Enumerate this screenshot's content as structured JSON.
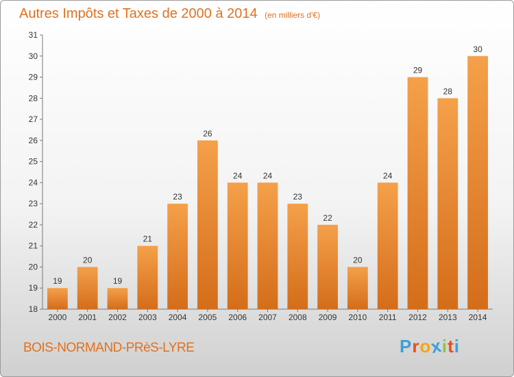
{
  "header": {
    "title": "Autres Impôts et Taxes de 2000 à 2014",
    "unit": "(en milliers d'€)"
  },
  "footer": {
    "commune": "BOIS-NORMAND-PRèS-LYRE",
    "logo": [
      "P",
      "r",
      "o",
      "x",
      "i",
      "t",
      "i"
    ]
  },
  "colors": {
    "bar_light": "#f5a04a",
    "bar_dark": "#d46d1a",
    "title": "#e0711f",
    "logo": [
      "#3aa0d8",
      "#e94e1b",
      "#f3a712",
      "#3aa0d8",
      "#8cc63f",
      "#e94e1b",
      "#3aa0d8"
    ]
  },
  "chart_data": {
    "type": "bar",
    "categories": [
      "2000",
      "2001",
      "2002",
      "2003",
      "2004",
      "2005",
      "2006",
      "2007",
      "2008",
      "2009",
      "2010",
      "2011",
      "2012",
      "2013",
      "2014"
    ],
    "values": [
      19,
      20,
      19,
      21,
      23,
      26,
      24,
      24,
      23,
      22,
      20,
      24,
      29,
      28,
      30
    ],
    "ylim": [
      18,
      31
    ],
    "yticks": [
      18,
      19,
      20,
      21,
      22,
      23,
      24,
      25,
      26,
      27,
      28,
      29,
      30,
      31
    ],
    "grid": false,
    "data_labels": true
  }
}
